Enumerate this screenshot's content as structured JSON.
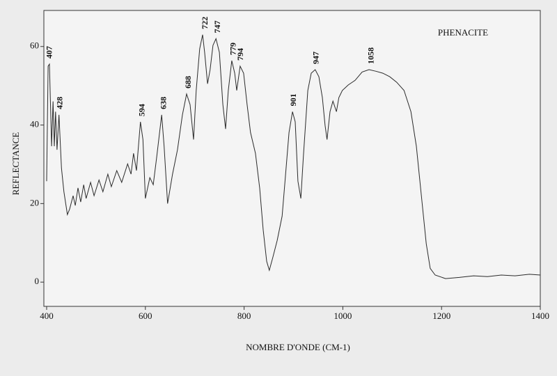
{
  "chart_data": {
    "type": "line",
    "title": "PHENACITE",
    "x_label": "NOMBRE D'ONDE (CM-1)",
    "y_label": "REFLECTANCE",
    "xlim": [
      400,
      1400
    ],
    "ylim": [
      -6,
      69
    ],
    "xticks": [
      400,
      600,
      800,
      1000,
      1200,
      1400
    ],
    "yticks": [
      0,
      20,
      40,
      60
    ],
    "color": "#2a2a2a",
    "x": [
      400,
      403,
      405.6,
      410,
      413,
      415.5,
      418,
      421,
      425,
      430,
      435,
      442,
      446.5,
      453.6,
      458,
      463.5,
      469,
      475,
      480,
      489,
      496,
      506,
      514,
      524,
      531,
      542,
      552,
      564,
      571,
      576,
      582,
      590,
      595,
      600,
      609,
      616,
      623,
      633,
      638,
      645,
      655,
      665,
      675,
      683.5,
      690.5,
      697.6,
      703,
      710,
      716,
      720,
      726,
      731,
      737,
      743,
      750,
      757,
      762.5,
      768,
      775,
      781,
      785,
      792,
      799,
      806,
      813,
      823,
      831.6,
      838.6,
      845.7,
      851,
      858,
      867,
      877,
      884,
      891,
      898,
      903.5,
      909,
      915,
      920,
      929,
      936,
      944,
      951.5,
      958.5,
      964,
      968,
      974,
      980,
      987,
      992,
      999,
      1011,
      1025,
      1039,
      1053,
      1067,
      1081,
      1095,
      1109,
      1124,
      1138,
      1149,
      1159,
      1169,
      1177,
      1187,
      1208,
      1236,
      1265,
      1293,
      1321,
      1349,
      1378,
      1400
    ],
    "values": [
      25.7,
      55,
      55.5,
      34.6,
      46,
      34.6,
      43.4,
      33.7,
      42.6,
      29,
      23,
      17.2,
      18.6,
      22,
      19.5,
      24,
      20.4,
      24.8,
      21.3,
      25.4,
      22,
      26,
      23,
      27.5,
      24.3,
      28.4,
      25.4,
      30.1,
      27.5,
      32.8,
      28.4,
      40.8,
      36.3,
      21.3,
      26.6,
      24.8,
      31.9,
      42.6,
      34.6,
      20,
      27.5,
      33.7,
      42.6,
      47.9,
      45.2,
      36.3,
      48.8,
      59.4,
      63,
      58.5,
      50.5,
      54,
      60.3,
      62,
      58.5,
      45.2,
      39,
      48.8,
      56.4,
      53.2,
      48.8,
      55,
      53.2,
      45.2,
      38.1,
      32.8,
      23.9,
      13.3,
      5.3,
      3,
      6.2,
      10.6,
      16.8,
      27.5,
      38.1,
      43.4,
      40.8,
      25.7,
      21.3,
      31.9,
      48.8,
      53.2,
      54.1,
      52.3,
      47,
      39.9,
      36.3,
      43.4,
      46.1,
      43.4,
      47,
      48.8,
      50.2,
      51.4,
      53.5,
      54.1,
      53.7,
      53.2,
      52.3,
      50.9,
      48.8,
      43.4,
      34.6,
      22.2,
      9.8,
      3.5,
      1.8,
      0.9,
      1.2,
      1.6,
      1.4,
      1.8,
      1.6,
      2,
      1.8
    ],
    "peak_labels": [
      407,
      428,
      594,
      638,
      688,
      722,
      747,
      779,
      794,
      901,
      947,
      1058
    ]
  }
}
